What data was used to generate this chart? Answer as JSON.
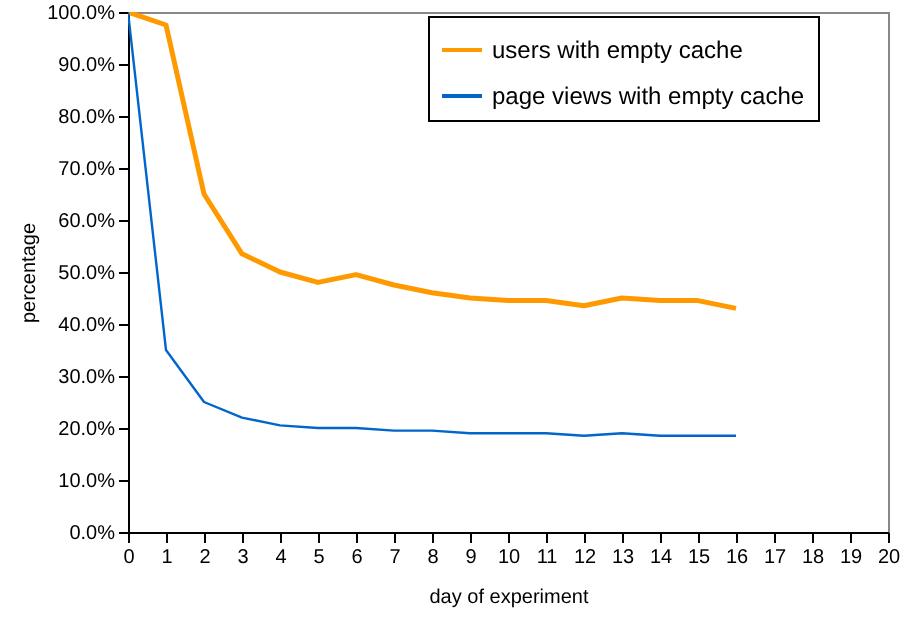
{
  "chart_data": {
    "type": "line",
    "xlabel": "day of experiment",
    "ylabel": "percentage",
    "x": [
      0,
      1,
      2,
      3,
      4,
      5,
      6,
      7,
      8,
      9,
      10,
      11,
      12,
      13,
      14,
      15,
      16
    ],
    "series": [
      {
        "name": "users with empty cache",
        "color": "#ff9900",
        "values": [
          100,
          97.5,
          65,
          53.5,
          50,
          48,
          49.5,
          47.5,
          46,
          45,
          44.5,
          44.5,
          43.5,
          45,
          44.5,
          44.5,
          43
        ]
      },
      {
        "name": "page views with empty cache",
        "color": "#0066cc",
        "values": [
          100,
          35,
          25,
          22,
          20.5,
          20,
          20,
          19.5,
          19.5,
          19,
          19,
          19,
          18.5,
          19,
          18.5,
          18.5,
          18.5
        ]
      }
    ],
    "xlim": [
      0,
      20
    ],
    "xticks": [
      0,
      1,
      2,
      3,
      4,
      5,
      6,
      7,
      8,
      9,
      10,
      11,
      12,
      13,
      14,
      15,
      16,
      17,
      18,
      19,
      20
    ],
    "ylim": [
      0,
      100
    ],
    "yticks": [
      {
        "value": 0,
        "label": "0.0%"
      },
      {
        "value": 10,
        "label": "10.0%"
      },
      {
        "value": 20,
        "label": "20.0%"
      },
      {
        "value": 30,
        "label": "30.0%"
      },
      {
        "value": 40,
        "label": "40.0%"
      },
      {
        "value": 50,
        "label": "50.0%"
      },
      {
        "value": 60,
        "label": "60.0%"
      },
      {
        "value": 70,
        "label": "70.0%"
      },
      {
        "value": 80,
        "label": "80.0%"
      },
      {
        "value": 90,
        "label": "90.0%"
      },
      {
        "value": 100,
        "label": "100.0%"
      }
    ],
    "legend": "top right",
    "grid": false,
    "marker": "none"
  }
}
